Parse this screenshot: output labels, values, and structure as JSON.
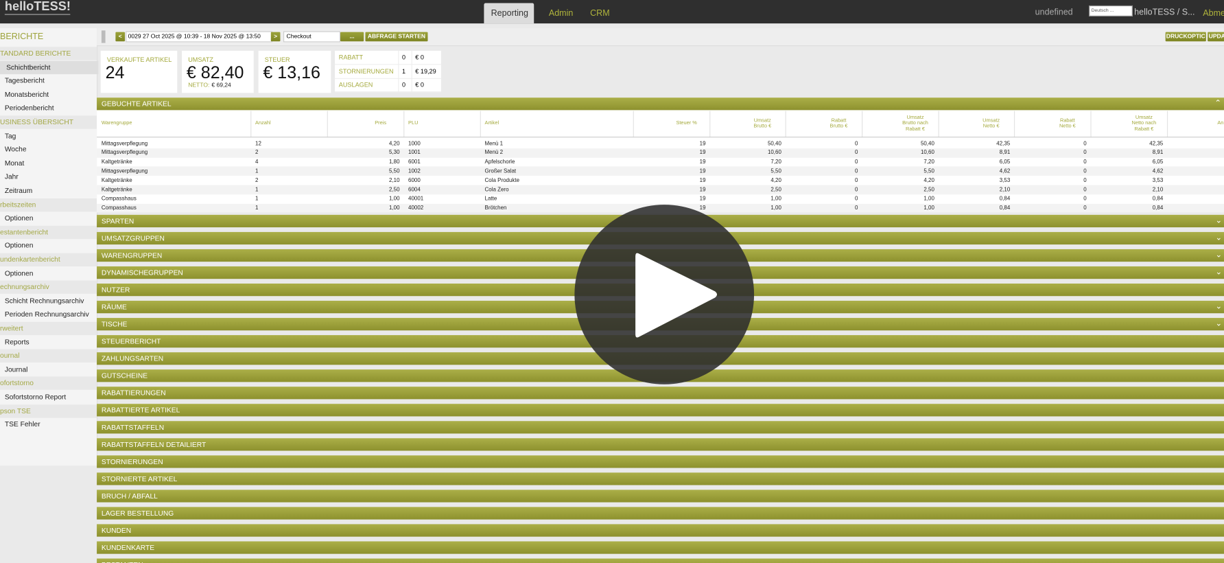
{
  "header": {
    "logo": "helloTESS!",
    "nav": [
      "Reporting",
      "Admin",
      "CRM"
    ],
    "user_status": "undefined",
    "language": "Deutsch ...",
    "account": "helloTESS / S...",
    "logout": "Abme"
  },
  "sidebar": {
    "title": "BERICHTE",
    "groups": [
      {
        "label": "TANDARD BERICHTE",
        "items": [
          "Schichtbericht",
          "Tagesbericht",
          "Monatsbericht",
          "Periodenbericht"
        ]
      },
      {
        "label": "USINESS ÜBERSICHT",
        "items": [
          "Tag",
          "Woche",
          "Monat",
          "Jahr",
          "Zeitraum"
        ]
      },
      {
        "label": "rbeitszeiten",
        "items": [
          "Optionen"
        ]
      },
      {
        "label": "estantenbericht",
        "items": [
          "Optionen"
        ]
      },
      {
        "label": "undenkartenbericht",
        "items": [
          "Optionen"
        ]
      },
      {
        "label": "echnungsarchiv",
        "items": [
          "Schicht Rechnungsarchiv",
          "Perioden Rechnungsarchiv"
        ]
      },
      {
        "label": "rweitert",
        "items": [
          "Reports"
        ]
      },
      {
        "label": "ournal",
        "items": [
          "Journal"
        ]
      },
      {
        "label": "ofortstorno",
        "items": [
          "Sofortstorno Report"
        ]
      },
      {
        "label": "pson TSE",
        "items": [
          "TSE Fehler"
        ]
      }
    ]
  },
  "toolbar": {
    "prev": "<",
    "date_range": "0029 27 Oct 2025 @ 10:39 - 18 Nov 2025 @ 13:50",
    "next": ">",
    "filter": "Checkout",
    "more": "...",
    "start": "ABFRAGE STARTEN",
    "print": "DRUCKOPTIC",
    "update": "UPDA"
  },
  "summary": {
    "sold": {
      "label": "VERKAUFTE ARTIKEL",
      "value": "24"
    },
    "revenue": {
      "label": "UMSATZ",
      "value": "€ 82,40",
      "net_label": "NETTO:",
      "net_value": "€ 69,24"
    },
    "tax": {
      "label": "STEUER",
      "value": "€ 13,16"
    },
    "extras": [
      [
        "RABATT",
        "0",
        "€ 0"
      ],
      [
        "STORNIERUNGEN",
        "1",
        "€ 19,29"
      ],
      [
        "AUSLAGEN",
        "0",
        "€ 0"
      ]
    ]
  },
  "table": {
    "title": "GEBUCHTE ARTIKEL",
    "columns": [
      [
        "Warengruppe"
      ],
      [
        "Anzahl"
      ],
      [
        "Preis"
      ],
      [
        "PLU"
      ],
      [
        "Artikel"
      ],
      [
        "Steuer %"
      ],
      [
        "Umsatz",
        "Brutto €"
      ],
      [
        "Rabatt",
        "Brutto €"
      ],
      [
        "Umsatz",
        "Brutto nach",
        "Rabatt €"
      ],
      [
        "Umsatz",
        "Netto €"
      ],
      [
        "Rabatt",
        "Netto €"
      ],
      [
        "Umsatz",
        "Netto nach",
        "Rabatt €"
      ],
      [
        "An"
      ]
    ],
    "rows": [
      [
        "Mittagsverpflegung",
        "12",
        "4,20",
        "1000",
        "Menü 1",
        "19",
        "50,40",
        "0",
        "50,40",
        "42,35",
        "0",
        "42,35"
      ],
      [
        "Mittagsverpflegung",
        "2",
        "5,30",
        "1001",
        "Menü 2",
        "19",
        "10,60",
        "0",
        "10,60",
        "8,91",
        "0",
        "8,91"
      ],
      [
        "Kaltgetränke",
        "4",
        "1,80",
        "6001",
        "Apfelschorle",
        "19",
        "7,20",
        "0",
        "7,20",
        "6,05",
        "0",
        "6,05"
      ],
      [
        "Mittagsverpflegung",
        "1",
        "5,50",
        "1002",
        "Großer Salat",
        "19",
        "5,50",
        "0",
        "5,50",
        "4,62",
        "0",
        "4,62"
      ],
      [
        "Kaltgetränke",
        "2",
        "2,10",
        "6000",
        "Cola Produkte",
        "19",
        "4,20",
        "0",
        "4,20",
        "3,53",
        "0",
        "3,53"
      ],
      [
        "Kaltgetränke",
        "1",
        "2,50",
        "6004",
        "Cola Zero",
        "19",
        "2,50",
        "0",
        "2,50",
        "2,10",
        "0",
        "2,10"
      ],
      [
        "Compasshaus",
        "1",
        "1,00",
        "40001",
        "Latte",
        "19",
        "1,00",
        "0",
        "1,00",
        "0,84",
        "0",
        "0,84"
      ],
      [
        "Compasshaus",
        "1",
        "1,00",
        "40002",
        "Brötchen",
        "19",
        "1,00",
        "0",
        "1,00",
        "0,84",
        "0",
        "0,84"
      ]
    ]
  },
  "sections": [
    {
      "title": "SPARTEN",
      "collapsible": true
    },
    {
      "title": "UMSATZGRUPPEN",
      "collapsible": true
    },
    {
      "title": "WARENGRUPPEN",
      "collapsible": true
    },
    {
      "title": "DYNAMISCHEGRUPPEN",
      "collapsible": true
    },
    {
      "title": "NUTZER",
      "collapsible": false
    },
    {
      "title": "RÄUME",
      "collapsible": true
    },
    {
      "title": "TISCHE",
      "collapsible": true
    },
    {
      "title": "STEUERBERICHT",
      "collapsible": false
    },
    {
      "title": "ZAHLUNGSARTEN",
      "collapsible": false
    },
    {
      "title": "GUTSCHEINE",
      "collapsible": false
    },
    {
      "title": "RABATTIERUNGEN",
      "collapsible": false
    },
    {
      "title": "RABATTIERTE ARTIKEL",
      "collapsible": false
    },
    {
      "title": "RABATTSTAFFELN",
      "collapsible": false
    },
    {
      "title": "RABATTSTAFFELN DETAILIERT",
      "collapsible": false
    },
    {
      "title": "STORNIERUNGEN",
      "collapsible": false
    },
    {
      "title": "STORNIERTE ARTIKEL",
      "collapsible": false
    },
    {
      "title": "BRUCH / ABFALL",
      "collapsible": false
    },
    {
      "title": "LAGER BESTELLUNG",
      "collapsible": false
    },
    {
      "title": "KUNDEN",
      "collapsible": false
    },
    {
      "title": "KUNDENKARTE",
      "collapsible": false
    },
    {
      "title": "BESTANTEN",
      "collapsible": false
    }
  ]
}
